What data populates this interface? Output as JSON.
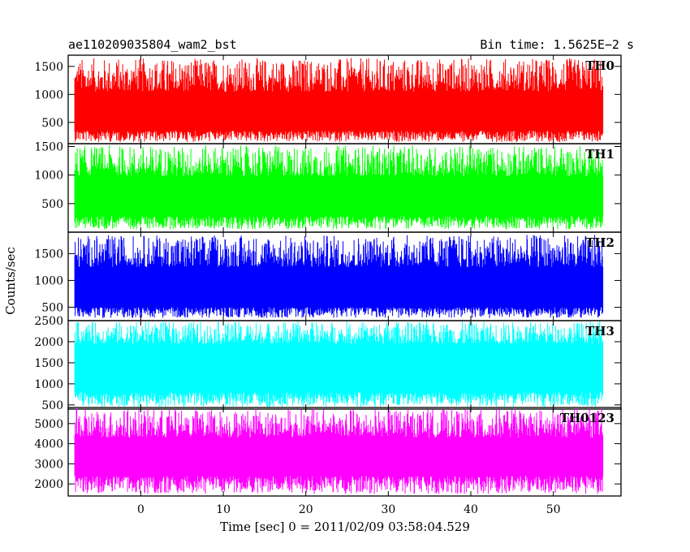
{
  "header": {
    "left_title": "ae110209035804_wam2_bst",
    "right_title": "Bin time: 1.5625E−2 s"
  },
  "chart_data": {
    "type": "line",
    "xlabel": "Time [sec] 0 = 2011/02/09 03:58:04.529",
    "ylabel": "Counts/sec",
    "xlim": [
      -8.8,
      58.2
    ],
    "x_ticks": [
      0,
      10,
      20,
      30,
      40,
      50
    ],
    "x_tick_labels": [
      "0",
      "10",
      "20",
      "30",
      "40",
      "50"
    ],
    "data_x_range": [
      -8,
      56
    ],
    "panels": [
      {
        "name": "TH0",
        "color": "#ff0000",
        "ylim": [
          120,
          1700
        ],
        "y_ticks": [
          500,
          1000,
          1500
        ],
        "y_tick_labels": [
          "500",
          "1000",
          "1500"
        ],
        "baseline_min": 150,
        "band_low": 350,
        "band_high": 1050,
        "peak_max": 1650
      },
      {
        "name": "TH1",
        "color": "#00ff00",
        "ylim": [
          0,
          1550
        ],
        "y_ticks": [
          500,
          1000,
          1500
        ],
        "y_tick_labels": [
          "500",
          "1000",
          "1500"
        ],
        "baseline_min": 50,
        "band_low": 280,
        "band_high": 980,
        "peak_max": 1520
      },
      {
        "name": "TH2",
        "color": "#0000ff",
        "ylim": [
          250,
          1900
        ],
        "y_ticks": [
          500,
          1000,
          1500
        ],
        "y_tick_labels": [
          "500",
          "1000",
          "1500"
        ],
        "baseline_min": 300,
        "band_low": 500,
        "band_high": 1250,
        "peak_max": 1850
      },
      {
        "name": "TH3",
        "color": "#00ffff",
        "ylim": [
          400,
          2500
        ],
        "y_ticks": [
          500,
          1000,
          1500,
          2000,
          2500
        ],
        "y_tick_labels": [
          "500",
          "1000",
          "1500",
          "2000",
          "2500"
        ],
        "baseline_min": 450,
        "band_low": 800,
        "band_high": 1950,
        "peak_max": 2480
      },
      {
        "name": "TH0123",
        "color": "#ff00ff",
        "ylim": [
          1400,
          5800
        ],
        "y_ticks": [
          2000,
          3000,
          4000,
          5000
        ],
        "y_tick_labels": [
          "2000",
          "3000",
          "4000",
          "5000"
        ],
        "baseline_min": 1500,
        "band_low": 2400,
        "band_high": 4300,
        "peak_max": 5750
      }
    ]
  }
}
